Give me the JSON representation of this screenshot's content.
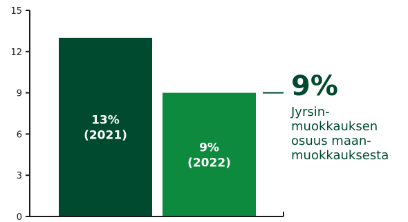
{
  "chart_data": {
    "type": "bar",
    "categories": [
      "2021",
      "2022"
    ],
    "values": [
      13,
      9
    ],
    "bar_labels": [
      [
        "13%",
        "(2021)"
      ],
      [
        "9%",
        "(2022)"
      ]
    ],
    "title": "",
    "xlabel": "",
    "ylabel": "",
    "ylim": [
      0,
      15
    ],
    "yticks": [
      "0",
      "3",
      "6",
      "9",
      "12",
      "15"
    ],
    "grid": false,
    "legend": "none",
    "bar_colors": [
      "#004b30",
      "#0e8a3e"
    ],
    "axis_color": "#1a1a1a"
  },
  "callout": {
    "value": "9%",
    "lines": [
      "Jyrsin-",
      "muokkauksen",
      "osuus maan-",
      "muokkauksesta"
    ],
    "color": "#004b30"
  }
}
